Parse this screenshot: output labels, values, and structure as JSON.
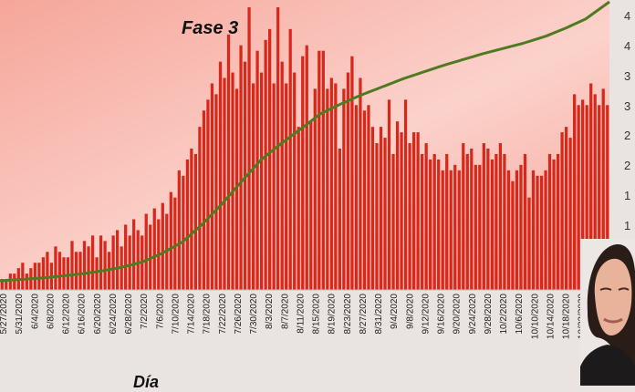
{
  "annotation": "Fase 3",
  "x_title": "Día",
  "colors": {
    "plot_bg": "#f6a69a",
    "plot_bg_light": "#fbd2cb",
    "bar": "#d8281c",
    "bar_edge": "#b31a10",
    "line": "#4f7a1f",
    "background": "#e9e4e2"
  },
  "chart_data": {
    "type": "bar",
    "title": "",
    "xlabel": "Día",
    "ylabel": "",
    "y_tick_labels_partially_visible": [
      "4",
      "4",
      "3",
      "3",
      "2",
      "2",
      "1",
      "1"
    ],
    "x_tick_labels": [
      "5/27/2020",
      "5/31/2020",
      "6/4/2020",
      "6/8/2020",
      "6/12/2020",
      "6/16/2020",
      "6/20/2020",
      "6/24/2020",
      "6/28/2020",
      "7/2/2020",
      "7/6/2020",
      "7/10/2020",
      "7/14/2020",
      "7/18/2020",
      "7/22/2020",
      "7/26/2020",
      "7/30/2020",
      "8/3/2020",
      "8/7/2020",
      "8/11/2020",
      "8/15/2020",
      "8/19/2020",
      "8/23/2020",
      "8/27/2020",
      "8/31/2020",
      "9/4/2020",
      "9/8/2020",
      "9/12/2020",
      "9/16/2020",
      "9/20/2020",
      "9/24/2020",
      "9/28/2020",
      "10/2/2020",
      "10/6/2020",
      "10/10/2020",
      "10/14/2020",
      "10/18/2020",
      "10/22/2020",
      "10/26/2020"
    ],
    "series": [
      {
        "type": "bar",
        "values": [
          2,
          2,
          3,
          3,
          4,
          5,
          3,
          4,
          5,
          5,
          6,
          7,
          5,
          8,
          7,
          6,
          6,
          9,
          7,
          7,
          9,
          8,
          10,
          6,
          10,
          9,
          7,
          10,
          11,
          8,
          12,
          10,
          13,
          11,
          10,
          14,
          12,
          15,
          13,
          16,
          14,
          18,
          17,
          22,
          21,
          24,
          26,
          25,
          30,
          33,
          35,
          38,
          36,
          42,
          39,
          47,
          40,
          37,
          45,
          42,
          52,
          38,
          44,
          40,
          46,
          48,
          38,
          52,
          42,
          38,
          48,
          40,
          30,
          43,
          45,
          31,
          37,
          44,
          44,
          37,
          39,
          38,
          26,
          37,
          40,
          43,
          34,
          39,
          33,
          34,
          30,
          27,
          30,
          28,
          35,
          25,
          31,
          29,
          35,
          27,
          29,
          29,
          25,
          27,
          24,
          25,
          24,
          22,
          25,
          22,
          23,
          22,
          27,
          25,
          26,
          23,
          23,
          27,
          26,
          24,
          25,
          27,
          25,
          22,
          20,
          22,
          23,
          25,
          17,
          22,
          21,
          21,
          22,
          25,
          24,
          25,
          29,
          30,
          28,
          36,
          34,
          35,
          34,
          38,
          36,
          34,
          37,
          34
        ],
        "ylim": [
          0,
          52
        ]
      },
      {
        "type": "line",
        "values": [
          0,
          0.35,
          0.7,
          1.05,
          1.4,
          1.75,
          2.1,
          2.5,
          2.9,
          3.3,
          3.7,
          4.1,
          4.6,
          5.1,
          5.6,
          6.2,
          6.8,
          7.4,
          8.0,
          8.6,
          9.2,
          9.8,
          10.6,
          11.4,
          12.2,
          13.0,
          13.8,
          14.8,
          15.8,
          16.8,
          17.8,
          18.8,
          20.2,
          21.6,
          23.0,
          24.4,
          25.8,
          28.2,
          30.6,
          33.0,
          35.4,
          37.8,
          40.8,
          43.8,
          46.8,
          49.8,
          52.8,
          57.6,
          62.4,
          67.2,
          72.0,
          76.8,
          82.4,
          88.0,
          93.6,
          99.2,
          104.8,
          111.0,
          117.2,
          123.4,
          129.6,
          135.8,
          141.8,
          147.8,
          153.8,
          159.8,
          165.8,
          170.2,
          174.6,
          179.0,
          183.4,
          187.8,
          191.8,
          195.8,
          199.8,
          203.8,
          207.8,
          212.0,
          216.2,
          220.4,
          224.6,
          228.8,
          231.4,
          234.0,
          236.6,
          239.2,
          241.8,
          244.2,
          246.6,
          249.0,
          251.4,
          253.8,
          255.9,
          258.0,
          260.1,
          262.2,
          264.3,
          266.4,
          268.5,
          270.6,
          272.7,
          274.8,
          276.9,
          278.7,
          280.5,
          282.3,
          284.1,
          285.9,
          287.7,
          289.5,
          291.3,
          293.1,
          294.9,
          296.5,
          298.1,
          299.7,
          301.3,
          302.9,
          304.5,
          306.1,
          307.7,
          309.3,
          310.9,
          312.3,
          313.7,
          315.1,
          316.5,
          317.9,
          319.3,
          320.7,
          322.1,
          323.5,
          324.9,
          326.6,
          328.3,
          330.0,
          331.7,
          333.4,
          335.1,
          337.3,
          339.5,
          341.7,
          343.9,
          346.1,
          348.6,
          351.1,
          353.6,
          356.1,
          358.6,
          362.5,
          366.4,
          370.3,
          374.2,
          378.1,
          382.0
        ],
        "ylim": [
          0,
          382
        ]
      }
    ],
    "grid": false,
    "legend": "none"
  }
}
